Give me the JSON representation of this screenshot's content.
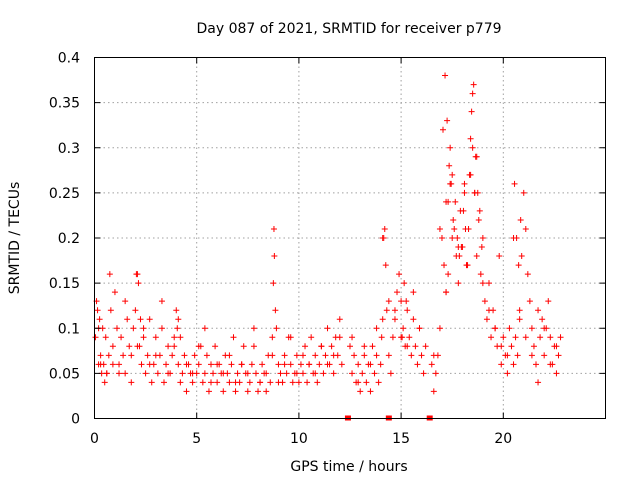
{
  "chart_data": {
    "type": "scatter",
    "title": "Day 087 of 2021, SRMTID for receiver p779",
    "xlabel": "GPS time / hours",
    "ylabel": "SRMTID / TECUs",
    "xlim": [
      0,
      25
    ],
    "ylim": [
      0,
      0.4
    ],
    "xticks": [
      "0",
      "5",
      "10",
      "15",
      "20"
    ],
    "yticks": [
      "0",
      "0.05",
      "0.1",
      "0.15",
      "0.2",
      "0.25",
      "0.3",
      "0.35",
      "0.4"
    ],
    "grid": true,
    "marker": "+",
    "color": "#ff0000",
    "series": [
      {
        "name": "SRMTID p779",
        "x": [
          0.05,
          0.1,
          0.15,
          0.2,
          0.25,
          0.3,
          0.35,
          0.4,
          0.45,
          0.5,
          0.55,
          0.6,
          0.7,
          0.8,
          0.9,
          1.0,
          1.1,
          1.2,
          1.3,
          1.4,
          1.5,
          1.6,
          1.7,
          1.8,
          1.9,
          2.0,
          2.1,
          2.15,
          2.2,
          2.3,
          2.4,
          2.5,
          2.6,
          2.7,
          2.8,
          2.9,
          3.0,
          3.1,
          3.2,
          3.3,
          3.4,
          3.5,
          3.6,
          3.7,
          3.8,
          3.9,
          4.0,
          4.05,
          4.1,
          4.2,
          4.3,
          4.4,
          4.5,
          4.6,
          4.7,
          4.8,
          4.9,
          5.0,
          5.1,
          5.2,
          5.3,
          5.4,
          5.5,
          5.6,
          5.7,
          5.8,
          5.9,
          6.0,
          6.1,
          6.2,
          6.3,
          6.4,
          6.5,
          6.6,
          6.7,
          6.8,
          6.9,
          7.0,
          7.1,
          7.2,
          7.3,
          7.4,
          7.5,
          7.6,
          7.7,
          7.8,
          7.9,
          8.0,
          8.1,
          8.2,
          8.3,
          8.4,
          8.5,
          8.6,
          8.7,
          8.75,
          8.8,
          8.85,
          8.9,
          9.0,
          9.1,
          9.2,
          9.3,
          9.4,
          9.5,
          9.6,
          9.7,
          9.8,
          9.9,
          10.0,
          10.1,
          10.2,
          10.3,
          10.4,
          10.5,
          10.6,
          10.7,
          10.8,
          10.9,
          11.0,
          11.1,
          11.2,
          11.3,
          11.4,
          11.5,
          11.6,
          11.7,
          11.8,
          11.9,
          12.0,
          12.1,
          12.5,
          12.6,
          12.7,
          12.8,
          12.9,
          13.0,
          13.1,
          13.2,
          13.3,
          13.4,
          13.5,
          13.6,
          13.7,
          13.8,
          13.9,
          14.0,
          14.05,
          14.1,
          14.2,
          14.3,
          14.4,
          14.5,
          14.6,
          14.7,
          14.8,
          14.9,
          15.0,
          15.1,
          15.2,
          15.3,
          15.4,
          15.5,
          15.6,
          15.7,
          15.8,
          15.9,
          16.0,
          16.1,
          16.2,
          16.5,
          16.6,
          16.7,
          16.8,
          16.9,
          17.0,
          17.1,
          17.2,
          17.3,
          17.4,
          17.5,
          17.6,
          17.7,
          17.8,
          17.9,
          18.0,
          18.1,
          18.2,
          18.3,
          18.4,
          18.5,
          18.6,
          18.7,
          18.8,
          18.9,
          19.0,
          19.1,
          19.2,
          19.3,
          19.4,
          19.5,
          19.6,
          19.7,
          19.8,
          19.9,
          20.0,
          20.1,
          20.2,
          20.3,
          20.4,
          20.5,
          20.6,
          20.7,
          20.8,
          20.9,
          21.0,
          21.1,
          21.2,
          21.3,
          21.4,
          21.5,
          21.6,
          21.7,
          21.8,
          21.9,
          22.0,
          22.1,
          22.2,
          22.3,
          22.4,
          22.5,
          22.6,
          22.7,
          22.8,
          0.3,
          0.6,
          0.9,
          1.2,
          1.5,
          1.8,
          2.1,
          2.4,
          2.7,
          3.0,
          3.3,
          3.6,
          3.9,
          4.2,
          4.5,
          4.8,
          5.1,
          5.4,
          5.7,
          6.0,
          6.3,
          6.6,
          6.9,
          7.2,
          7.5,
          7.8,
          8.1,
          8.4,
          8.7,
          9.0,
          9.3,
          9.6,
          9.9,
          10.2,
          10.5,
          10.8,
          11.1,
          11.4,
          11.7,
          12.0,
          12.6,
          12.9,
          13.2,
          13.5,
          13.8,
          14.1,
          14.4,
          14.7,
          15.0,
          15.3,
          15.6,
          15.9,
          16.6,
          16.9,
          17.2,
          17.5,
          17.8,
          18.1,
          18.4,
          18.7,
          19.0,
          19.3,
          19.6,
          19.9,
          20.2,
          20.5,
          20.8,
          21.1,
          21.4,
          21.7,
          22.0,
          22.3,
          22.6,
          17.05,
          17.15,
          17.25,
          17.35,
          17.45,
          17.55,
          17.65,
          17.75,
          17.85,
          17.95,
          18.05,
          18.15,
          18.25,
          18.35,
          18.45,
          18.55,
          18.65,
          18.75,
          18.85,
          18.95,
          20.55,
          20.65,
          20.75,
          20.85,
          14.15,
          14.25,
          15.05,
          15.15,
          15.25,
          0.75,
          8.78,
          2.05,
          2.25,
          4.1,
          0.2,
          17.3,
          17.2,
          17.4,
          18.5,
          18.6
        ],
        "y": [
          0.09,
          0.13,
          0.12,
          0.06,
          0.11,
          0.07,
          0.05,
          0.1,
          0.06,
          0.04,
          0.09,
          0.05,
          0.07,
          0.12,
          0.08,
          0.14,
          0.1,
          0.06,
          0.09,
          0.07,
          0.05,
          0.11,
          0.08,
          0.04,
          0.1,
          0.12,
          0.16,
          0.15,
          0.08,
          0.06,
          0.09,
          0.05,
          0.07,
          0.11,
          0.04,
          0.06,
          0.09,
          0.05,
          0.07,
          0.1,
          0.04,
          0.06,
          0.08,
          0.05,
          0.07,
          0.09,
          0.12,
          0.1,
          0.06,
          0.04,
          0.05,
          0.07,
          0.03,
          0.06,
          0.05,
          0.04,
          0.07,
          0.05,
          0.06,
          0.08,
          0.04,
          0.05,
          0.07,
          0.03,
          0.06,
          0.05,
          0.08,
          0.04,
          0.06,
          0.05,
          0.03,
          0.07,
          0.05,
          0.04,
          0.06,
          0.09,
          0.03,
          0.05,
          0.04,
          0.06,
          0.08,
          0.05,
          0.03,
          0.04,
          0.06,
          0.1,
          0.05,
          0.03,
          0.04,
          0.06,
          0.05,
          0.03,
          0.07,
          0.04,
          0.09,
          0.15,
          0.18,
          0.12,
          0.1,
          0.06,
          0.05,
          0.04,
          0.07,
          0.05,
          0.09,
          0.06,
          0.04,
          0.05,
          0.07,
          0.04,
          0.06,
          0.05,
          0.08,
          0.04,
          0.06,
          0.09,
          0.05,
          0.07,
          0.04,
          0.06,
          0.08,
          0.05,
          0.07,
          0.1,
          0.06,
          0.08,
          0.05,
          0.09,
          0.07,
          0.11,
          0.06,
          0.08,
          0.09,
          0.07,
          0.04,
          0.06,
          0.03,
          0.05,
          0.07,
          0.04,
          0.06,
          0.03,
          0.08,
          0.05,
          0.1,
          0.04,
          0.06,
          0.09,
          0.2,
          0.21,
          0.12,
          0.07,
          0.05,
          0.09,
          0.11,
          0.14,
          0.16,
          0.13,
          0.1,
          0.08,
          0.12,
          0.09,
          0.07,
          0.11,
          0.08,
          0.06,
          0.1,
          0.07,
          0.05,
          0.08,
          0.06,
          0.03,
          0.05,
          0.07,
          0.1,
          0.2,
          0.17,
          0.14,
          0.24,
          0.3,
          0.27,
          0.21,
          0.18,
          0.15,
          0.23,
          0.19,
          0.26,
          0.17,
          0.21,
          0.31,
          0.36,
          0.25,
          0.29,
          0.22,
          0.16,
          0.2,
          0.13,
          0.11,
          0.15,
          0.09,
          0.12,
          0.1,
          0.08,
          0.18,
          0.06,
          0.09,
          0.07,
          0.05,
          0.1,
          0.08,
          0.06,
          0.09,
          0.07,
          0.12,
          0.18,
          0.25,
          0.21,
          0.16,
          0.13,
          0.1,
          0.08,
          0.06,
          0.04,
          0.09,
          0.11,
          0.07,
          0.1,
          0.13,
          0.09,
          0.06,
          0.08,
          0.05,
          0.07,
          0.09,
          0.06,
          0.05,
          0.06,
          0.05,
          0.13,
          0.07,
          0.08,
          0.1,
          0.06,
          0.07,
          0.13,
          0.05,
          0.08,
          0.09,
          0.06,
          0.05,
          0.08,
          0.1,
          0.04,
          0.06,
          0.05,
          0.07,
          0.04,
          0.06,
          0.05,
          0.08,
          0.04,
          0.05,
          0.07,
          0.04,
          0.06,
          0.09,
          0.05,
          0.07,
          0.06,
          0.05,
          0.08,
          0.06,
          0.07,
          0.09,
          0.05,
          0.04,
          0.08,
          0.06,
          0.07,
          0.11,
          0.13,
          0.12,
          0.09,
          0.08,
          0.14,
          0.1,
          0.07,
          0.21,
          0.24,
          0.2,
          0.19,
          0.25,
          0.27,
          0.18,
          0.15,
          0.12,
          0.1,
          0.08,
          0.07,
          0.2,
          0.11,
          0.09,
          0.07,
          0.12,
          0.1,
          0.06,
          0.08,
          0.32,
          0.38,
          0.33,
          0.28,
          0.26,
          0.22,
          0.24,
          0.2,
          0.18,
          0.19,
          0.23,
          0.21,
          0.17,
          0.27,
          0.34,
          0.37,
          0.29,
          0.25,
          0.23,
          0.19,
          0.26,
          0.2,
          0.17,
          0.22,
          0.2,
          0.17,
          0.09,
          0.15,
          0.13,
          0.16,
          0.21,
          0.16,
          0.11,
          0.11,
          0.1,
          0.16,
          0.14,
          0.26,
          0.3,
          0.25
        ]
      }
    ],
    "gap_markers": [
      12.4,
      14.4,
      16.4
    ]
  }
}
